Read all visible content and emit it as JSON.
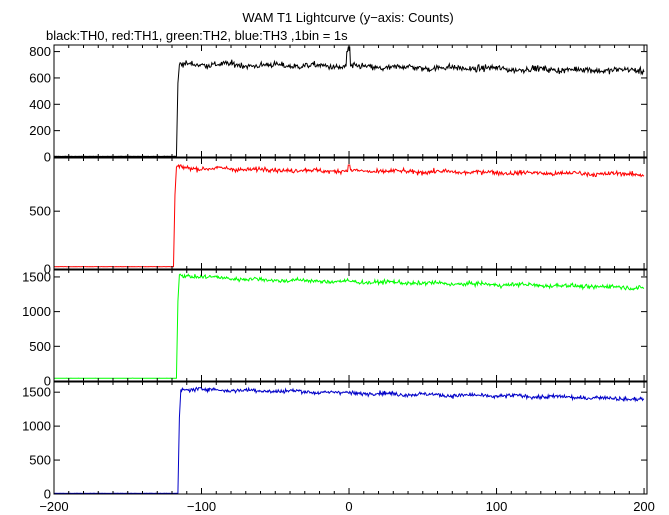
{
  "chart_data": {
    "type": "line",
    "title": "WAM T1 Lightcurve (y−axis: Counts)",
    "subtitle": "black:TH0, red:TH1, green:TH2, blue:TH3 ,1bin = 1s",
    "xlim": [
      -200,
      202
    ],
    "x_ticks": [
      -200,
      -100,
      0,
      100,
      200
    ],
    "x_tick_labels": [
      "−200",
      "−100",
      "0",
      "100",
      "200"
    ],
    "grid": false,
    "panels": [
      {
        "series_name": "TH0",
        "color": "#000000",
        "ylim": [
          0,
          850
        ],
        "y_ticks": [
          0,
          200,
          400,
          600,
          800
        ],
        "y_tick_labels": [
          "0",
          "200",
          "400",
          "600",
          "800"
        ],
        "pre_level": 5,
        "profile": [
          [
            -200,
            5
          ],
          [
            -117,
            5
          ],
          [
            -116,
            560
          ],
          [
            -115,
            700
          ],
          [
            -100,
            705
          ],
          [
            -80,
            700
          ],
          [
            -60,
            695
          ],
          [
            -40,
            695
          ],
          [
            -20,
            690
          ],
          [
            0,
            685
          ],
          [
            20,
            680
          ],
          [
            40,
            680
          ],
          [
            60,
            675
          ],
          [
            80,
            675
          ],
          [
            100,
            670
          ],
          [
            120,
            665
          ],
          [
            140,
            665
          ],
          [
            160,
            660
          ],
          [
            180,
            660
          ],
          [
            200,
            655
          ]
        ],
        "noise": 22,
        "spikes": [
          [
            -1,
            800
          ],
          [
            0,
            835
          ]
        ]
      },
      {
        "series_name": "TH1",
        "color": "#ff0000",
        "ylim": [
          0,
          960
        ],
        "y_ticks": [
          0,
          500
        ],
        "y_tick_labels": [
          "0",
          "500"
        ],
        "pre_level": 20,
        "profile": [
          [
            -200,
            20
          ],
          [
            -119,
            20
          ],
          [
            -118,
            640
          ],
          [
            -117,
            880
          ],
          [
            -100,
            870
          ],
          [
            -80,
            865
          ],
          [
            -60,
            860
          ],
          [
            -40,
            855
          ],
          [
            -20,
            850
          ],
          [
            0,
            848
          ],
          [
            20,
            845
          ],
          [
            40,
            842
          ],
          [
            60,
            840
          ],
          [
            80,
            838
          ],
          [
            100,
            835
          ],
          [
            120,
            830
          ],
          [
            140,
            828
          ],
          [
            160,
            825
          ],
          [
            180,
            822
          ],
          [
            200,
            820
          ]
        ],
        "noise": 18,
        "spikes": [
          [
            0,
            900
          ]
        ]
      },
      {
        "series_name": "TH2",
        "color": "#00ff00",
        "ylim": [
          0,
          1600
        ],
        "y_ticks": [
          0,
          500,
          1000,
          1500
        ],
        "y_tick_labels": [
          "0",
          "500",
          "1000",
          "1500"
        ],
        "pre_level": 40,
        "profile": [
          [
            -200,
            40
          ],
          [
            -117,
            40
          ],
          [
            -116,
            1150
          ],
          [
            -115,
            1530
          ],
          [
            -100,
            1500
          ],
          [
            -80,
            1480
          ],
          [
            -60,
            1460
          ],
          [
            -40,
            1450
          ],
          [
            -20,
            1440
          ],
          [
            0,
            1430
          ],
          [
            20,
            1425
          ],
          [
            40,
            1415
          ],
          [
            60,
            1405
          ],
          [
            80,
            1400
          ],
          [
            100,
            1390
          ],
          [
            120,
            1385
          ],
          [
            140,
            1375
          ],
          [
            160,
            1365
          ],
          [
            180,
            1355
          ],
          [
            200,
            1345
          ]
        ],
        "noise": 28,
        "spikes": []
      },
      {
        "series_name": "TH3",
        "color": "#0000c8",
        "ylim": [
          0,
          1650
        ],
        "y_ticks": [
          0,
          500,
          1000,
          1500
        ],
        "y_tick_labels": [
          "0",
          "500",
          "1000",
          "1500"
        ],
        "pre_level": 10,
        "profile": [
          [
            -200,
            10
          ],
          [
            -116,
            10
          ],
          [
            -115,
            1120
          ],
          [
            -114,
            1540
          ],
          [
            -100,
            1540
          ],
          [
            -80,
            1530
          ],
          [
            -60,
            1520
          ],
          [
            -40,
            1515
          ],
          [
            -20,
            1500
          ],
          [
            0,
            1490
          ],
          [
            20,
            1480
          ],
          [
            40,
            1470
          ],
          [
            60,
            1460
          ],
          [
            80,
            1450
          ],
          [
            100,
            1445
          ],
          [
            120,
            1440
          ],
          [
            140,
            1430
          ],
          [
            160,
            1420
          ],
          [
            180,
            1410
          ],
          [
            200,
            1395
          ]
        ],
        "noise": 28,
        "spikes": []
      }
    ]
  }
}
